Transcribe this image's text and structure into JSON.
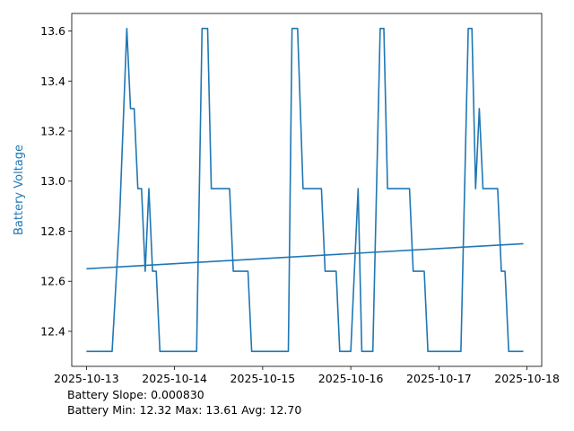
{
  "chart_data": {
    "type": "line",
    "title": "",
    "xlabel": "",
    "ylabel": "Battery Voltage",
    "ylabel_color": "#1f77b4",
    "line_color": "#1f77b4",
    "grid": false,
    "xlim": [
      "2025-10-12T20:00",
      "2025-10-18T04:00"
    ],
    "ylim": [
      12.26,
      13.67
    ],
    "xticks": [
      "2025-10-13",
      "2025-10-14",
      "2025-10-15",
      "2025-10-16",
      "2025-10-17",
      "2025-10-18"
    ],
    "yticks": [
      12.4,
      12.6,
      12.8,
      13.0,
      13.2,
      13.4,
      13.6
    ],
    "series": [
      {
        "x": [
          "2025-10-13T00:00",
          "2025-10-13T07:00",
          "2025-10-13T09:00",
          "2025-10-13T11:00",
          "2025-10-13T12:00",
          "2025-10-13T13:00",
          "2025-10-13T14:00",
          "2025-10-13T15:00",
          "2025-10-13T16:00",
          "2025-10-13T17:00",
          "2025-10-13T18:00",
          "2025-10-13T19:00",
          "2025-10-13T20:00",
          "2025-10-13T21:00",
          "2025-10-14T06:00",
          "2025-10-14T07:30",
          "2025-10-14T09:00",
          "2025-10-14T10:00",
          "2025-10-14T15:00",
          "2025-10-14T16:00",
          "2025-10-14T20:00",
          "2025-10-14T21:00",
          "2025-10-15T07:00",
          "2025-10-15T08:00",
          "2025-10-15T09:30",
          "2025-10-15T11:00",
          "2025-10-15T12:00",
          "2025-10-15T16:00",
          "2025-10-15T17:00",
          "2025-10-15T20:00",
          "2025-10-15T21:00",
          "2025-10-16T00:00",
          "2025-10-16T02:00",
          "2025-10-16T03:00",
          "2025-10-16T06:00",
          "2025-10-16T08:00",
          "2025-10-16T09:00",
          "2025-10-16T10:00",
          "2025-10-16T16:00",
          "2025-10-16T17:00",
          "2025-10-16T20:00",
          "2025-10-16T21:00",
          "2025-10-17T06:00",
          "2025-10-17T08:00",
          "2025-10-17T09:00",
          "2025-10-17T10:00",
          "2025-10-17T11:00",
          "2025-10-17T12:00",
          "2025-10-17T16:00",
          "2025-10-17T17:00",
          "2025-10-17T18:00",
          "2025-10-17T19:00",
          "2025-10-17T20:00",
          "2025-10-17T21:00",
          "2025-10-17T23:00"
        ],
        "y": [
          12.32,
          12.32,
          12.84,
          13.61,
          13.29,
          13.29,
          12.97,
          12.97,
          12.64,
          12.97,
          12.64,
          12.64,
          12.32,
          12.32,
          12.32,
          13.61,
          13.61,
          12.97,
          12.97,
          12.64,
          12.64,
          12.32,
          12.32,
          13.61,
          13.61,
          12.97,
          12.97,
          12.97,
          12.64,
          12.64,
          12.32,
          12.32,
          12.97,
          12.32,
          12.32,
          13.61,
          13.61,
          12.97,
          12.97,
          12.64,
          12.64,
          12.32,
          12.32,
          13.61,
          13.61,
          12.97,
          13.29,
          12.97,
          12.97,
          12.64,
          12.64,
          12.32,
          12.32,
          12.32,
          12.32
        ]
      },
      {
        "x": [
          "2025-10-13T00:00",
          "2025-10-17T23:00"
        ],
        "y": [
          12.65,
          12.75
        ]
      }
    ]
  },
  "stats": {
    "slope_text": "Battery Slope: 0.000830",
    "range_text": "Battery Min: 12.32 Max: 13.61 Avg: 12.70"
  }
}
